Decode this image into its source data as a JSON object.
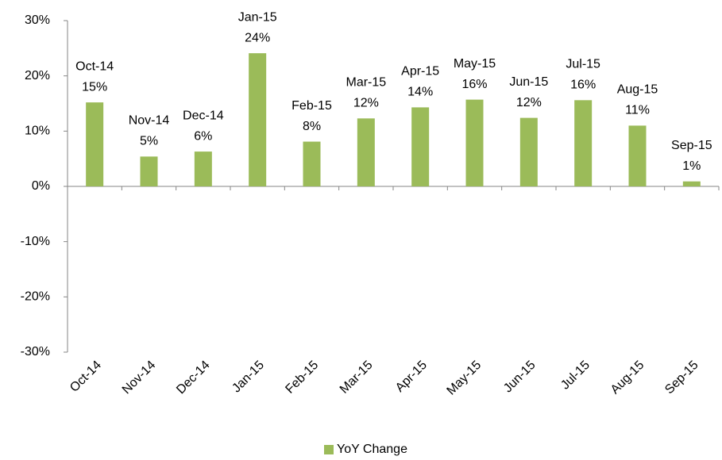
{
  "chart_data": {
    "type": "bar",
    "categories": [
      "Oct-14",
      "Nov-14",
      "Dec-14",
      "Jan-15",
      "Feb-15",
      "Mar-15",
      "Apr-15",
      "May-15",
      "Jun-15",
      "Jul-15",
      "Aug-15",
      "Sep-15"
    ],
    "series": [
      {
        "name": "YoY Change",
        "color": "#9bbb59",
        "values": [
          15.2,
          5.4,
          6.3,
          24.1,
          8.1,
          12.3,
          14.3,
          15.7,
          12.4,
          15.6,
          11.0,
          0.9
        ],
        "value_labels": [
          "15%",
          "5%",
          "6%",
          "24%",
          "8%",
          "12%",
          "14%",
          "16%",
          "12%",
          "16%",
          "11%",
          "1%"
        ]
      }
    ],
    "ylim": [
      -30,
      30
    ],
    "yticks": [
      {
        "value": -30,
        "label": "-30%"
      },
      {
        "value": -20,
        "label": "-20%"
      },
      {
        "value": -10,
        "label": "-10%"
      },
      {
        "value": 0,
        "label": "0%"
      },
      {
        "value": 10,
        "label": "10%"
      },
      {
        "value": 20,
        "label": "20%"
      },
      {
        "value": 30,
        "label": "30%"
      }
    ],
    "legend": "bottom"
  }
}
